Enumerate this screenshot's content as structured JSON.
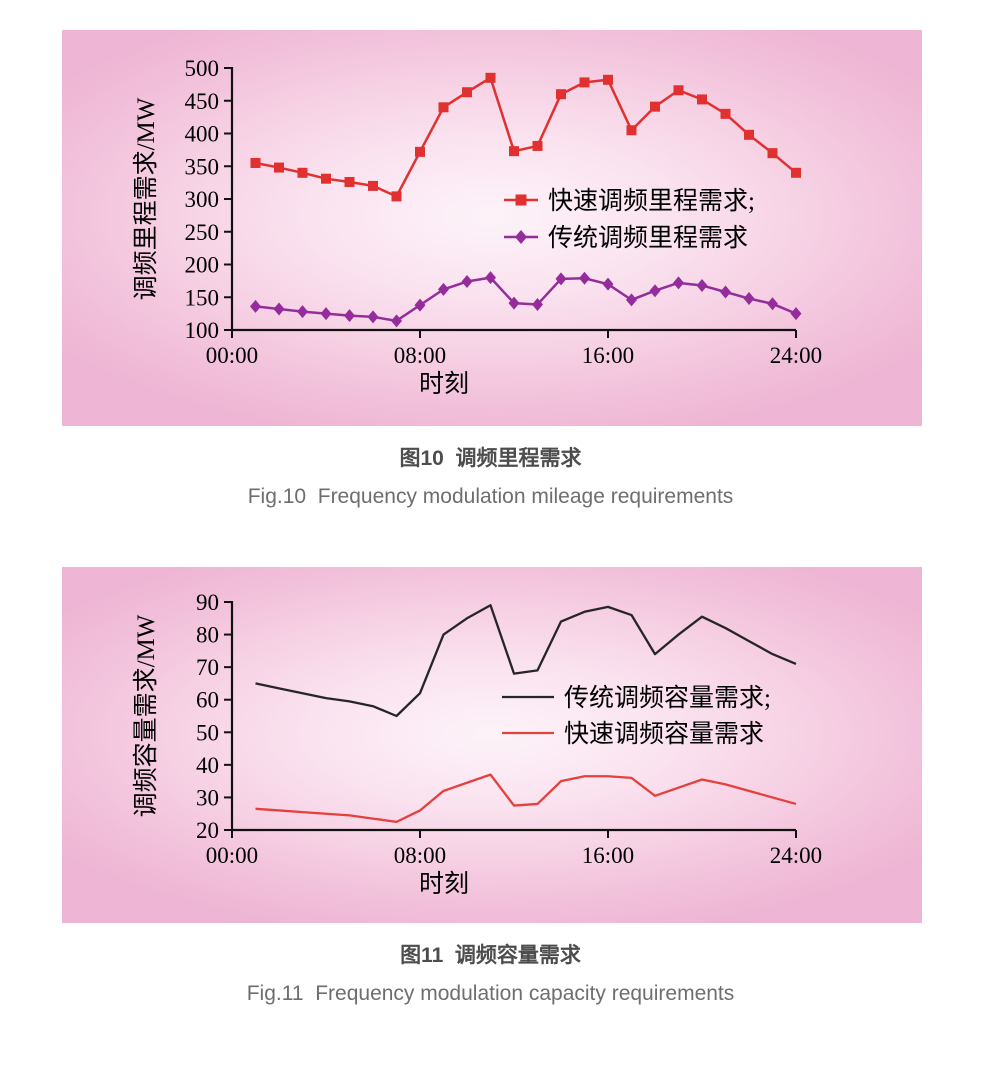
{
  "captions": {
    "fig10_zh": "图10  调频里程需求",
    "fig10_en": "Fig.10  Frequency modulation mileage requirements",
    "fig11_zh": "图11  调频容量需求",
    "fig11_en": "Fig.11  Frequency modulation capacity requirements"
  },
  "colors": {
    "panel_background_outer": "#eeb6d4",
    "panel_background_inner": "#fdf3f9",
    "fast_fm_mileage_red": "#e0302f",
    "traditional_fm_mileage_purple": "#942d9b",
    "traditional_fm_capacity_black": "#262626",
    "fast_fm_capacity_red": "#e5403d"
  },
  "chart_data": [
    {
      "type": "line",
      "title": "图10 调频里程需求",
      "xlabel": "时刻",
      "ylabel": "调频里程需求/MW",
      "xlim": [
        0,
        24
      ],
      "ylim": [
        100,
        500
      ],
      "xticks": [
        0,
        8,
        16,
        24
      ],
      "xtick_labels": [
        "00:00",
        "08:00",
        "16:00",
        "24:00"
      ],
      "yticks": [
        100,
        150,
        200,
        250,
        300,
        350,
        400,
        450,
        500
      ],
      "grid": false,
      "legend_position": "center-right",
      "x": [
        1,
        2,
        3,
        4,
        5,
        6,
        7,
        8,
        9,
        10,
        11,
        12,
        13,
        14,
        15,
        16,
        17,
        18,
        19,
        20,
        21,
        22,
        23,
        24
      ],
      "series": [
        {
          "name": "快速调频里程需求;",
          "color": "#e0302f",
          "marker": "square",
          "values": [
            355,
            348,
            340,
            331,
            326,
            320,
            304,
            372,
            440,
            463,
            485,
            373,
            381,
            460,
            478,
            482,
            405,
            441,
            466,
            452,
            430,
            398,
            370,
            340
          ]
        },
        {
          "name": "传统调频里程需求",
          "color": "#942d9b",
          "marker": "diamond",
          "values": [
            136,
            132,
            128,
            125,
            122,
            120,
            114,
            138,
            162,
            174,
            180,
            141,
            139,
            178,
            179,
            170,
            146,
            160,
            172,
            168,
            158,
            148,
            140,
            125
          ]
        }
      ]
    },
    {
      "type": "line",
      "title": "图11 调频容量需求",
      "xlabel": "时刻",
      "ylabel": "调频容量需求/MW",
      "xlim": [
        0,
        24
      ],
      "ylim": [
        20,
        90
      ],
      "xticks": [
        0,
        8,
        16,
        24
      ],
      "xtick_labels": [
        "00:00",
        "08:00",
        "16:00",
        "24:00"
      ],
      "yticks": [
        20,
        30,
        40,
        50,
        60,
        70,
        80,
        90
      ],
      "grid": false,
      "legend_position": "center-right",
      "x": [
        1,
        2,
        3,
        4,
        5,
        6,
        7,
        8,
        9,
        10,
        11,
        12,
        13,
        14,
        15,
        16,
        17,
        18,
        19,
        20,
        21,
        22,
        23,
        24
      ],
      "series": [
        {
          "name": "传统调频容量需求;",
          "color": "#262626",
          "marker": "none",
          "values": [
            65,
            63.5,
            62,
            60.5,
            59.5,
            58,
            55,
            62,
            80,
            85,
            89,
            68,
            69,
            84,
            87,
            88.5,
            86,
            74,
            80,
            85.5,
            82,
            78,
            74,
            71
          ]
        },
        {
          "name": "快速调频容量需求",
          "color": "#e5403d",
          "marker": "none",
          "values": [
            26.5,
            26,
            25.5,
            25,
            24.5,
            23.5,
            22.5,
            26,
            32,
            34.5,
            37,
            27.5,
            28,
            35,
            36.5,
            36.5,
            36,
            30.5,
            33,
            35.5,
            34,
            32,
            30,
            28
          ]
        }
      ]
    }
  ]
}
